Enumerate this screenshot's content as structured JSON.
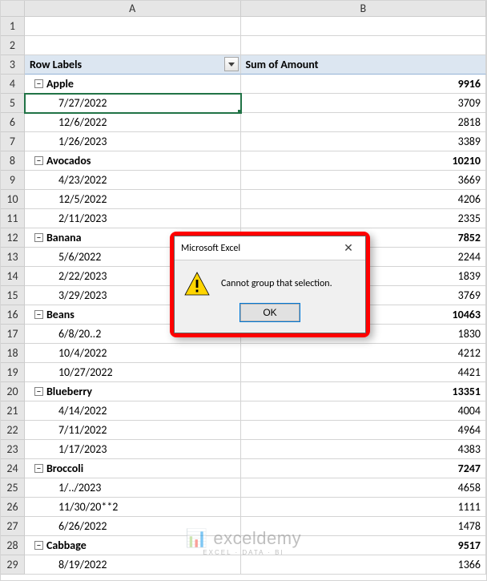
{
  "columns": {
    "a": "A",
    "b": "B"
  },
  "pivot_header": {
    "row_labels": "Row Labels",
    "sum": "Sum of Amount"
  },
  "selected_cell": {
    "row": 5,
    "col": "A"
  },
  "rows": [
    {
      "n": 1,
      "a": "",
      "b": "",
      "type": "blank"
    },
    {
      "n": 2,
      "a": "",
      "b": "",
      "type": "blank"
    },
    {
      "n": 3,
      "type": "header"
    },
    {
      "n": 4,
      "type": "group",
      "a": "Apple",
      "b": "9916"
    },
    {
      "n": 5,
      "type": "item",
      "a": "7/27/2022",
      "b": "3709"
    },
    {
      "n": 6,
      "type": "item",
      "a": "12/6/2022",
      "b": "2818"
    },
    {
      "n": 7,
      "type": "item",
      "a": "1/26/2023",
      "b": "3389"
    },
    {
      "n": 8,
      "type": "group",
      "a": "Avocados",
      "b": "10210"
    },
    {
      "n": 9,
      "type": "item",
      "a": "4/23/2022",
      "b": "3669"
    },
    {
      "n": 10,
      "type": "item",
      "a": "12/5/2022",
      "b": "4206"
    },
    {
      "n": 11,
      "type": "item",
      "a": "2/11/2023",
      "b": "2335"
    },
    {
      "n": 12,
      "type": "group",
      "a": "Banana",
      "b": "7852"
    },
    {
      "n": 13,
      "type": "item",
      "a": "5/6/2022",
      "b": "2244"
    },
    {
      "n": 14,
      "type": "item",
      "a": "2/22/2023",
      "b": "1839"
    },
    {
      "n": 15,
      "type": "item",
      "a": "3/29/2023",
      "b": "3769"
    },
    {
      "n": 16,
      "type": "group",
      "a": "Beans",
      "b": "10463"
    },
    {
      "n": 17,
      "type": "item",
      "a": "6/8/20..2",
      "b": "1830"
    },
    {
      "n": 18,
      "type": "item",
      "a": "10/4/2022",
      "b": "4212"
    },
    {
      "n": 19,
      "type": "item",
      "a": "10/27/2022",
      "b": "4421"
    },
    {
      "n": 20,
      "type": "group",
      "a": "Blueberry",
      "b": "13351"
    },
    {
      "n": 21,
      "type": "item",
      "a": "4/14/2022",
      "b": "4004"
    },
    {
      "n": 22,
      "type": "item",
      "a": "7/11/2022",
      "b": "4964"
    },
    {
      "n": 23,
      "type": "item",
      "a": "1/17/2023",
      "b": "4383"
    },
    {
      "n": 24,
      "type": "group",
      "a": "Broccoli",
      "b": "7247"
    },
    {
      "n": 25,
      "type": "item",
      "a": "1/../2023",
      "b": "4658"
    },
    {
      "n": 26,
      "type": "item",
      "a": "11/30/20**2",
      "b": "1111"
    },
    {
      "n": 27,
      "type": "item",
      "a": "6/26/2022",
      "b": "1478"
    },
    {
      "n": 28,
      "type": "group",
      "a": "Cabbage",
      "b": "9517"
    },
    {
      "n": 29,
      "type": "item",
      "a": "8/19/2022",
      "b": "1366"
    }
  ],
  "dialog": {
    "title": "Microsoft Excel",
    "message": "Cannot group that selection.",
    "ok": "OK",
    "close": "✕"
  },
  "toggle_glyph": "−",
  "watermark": {
    "line1": "exceldemy",
    "line2": "EXCEL · DATA · BI"
  },
  "colors": {
    "grid_border": "#d4d4d4",
    "header_bg": "#e6e6e6",
    "pivot_header_bg": "#dce6f1",
    "selection": "#217346",
    "dialog_border": "#ff0000"
  }
}
